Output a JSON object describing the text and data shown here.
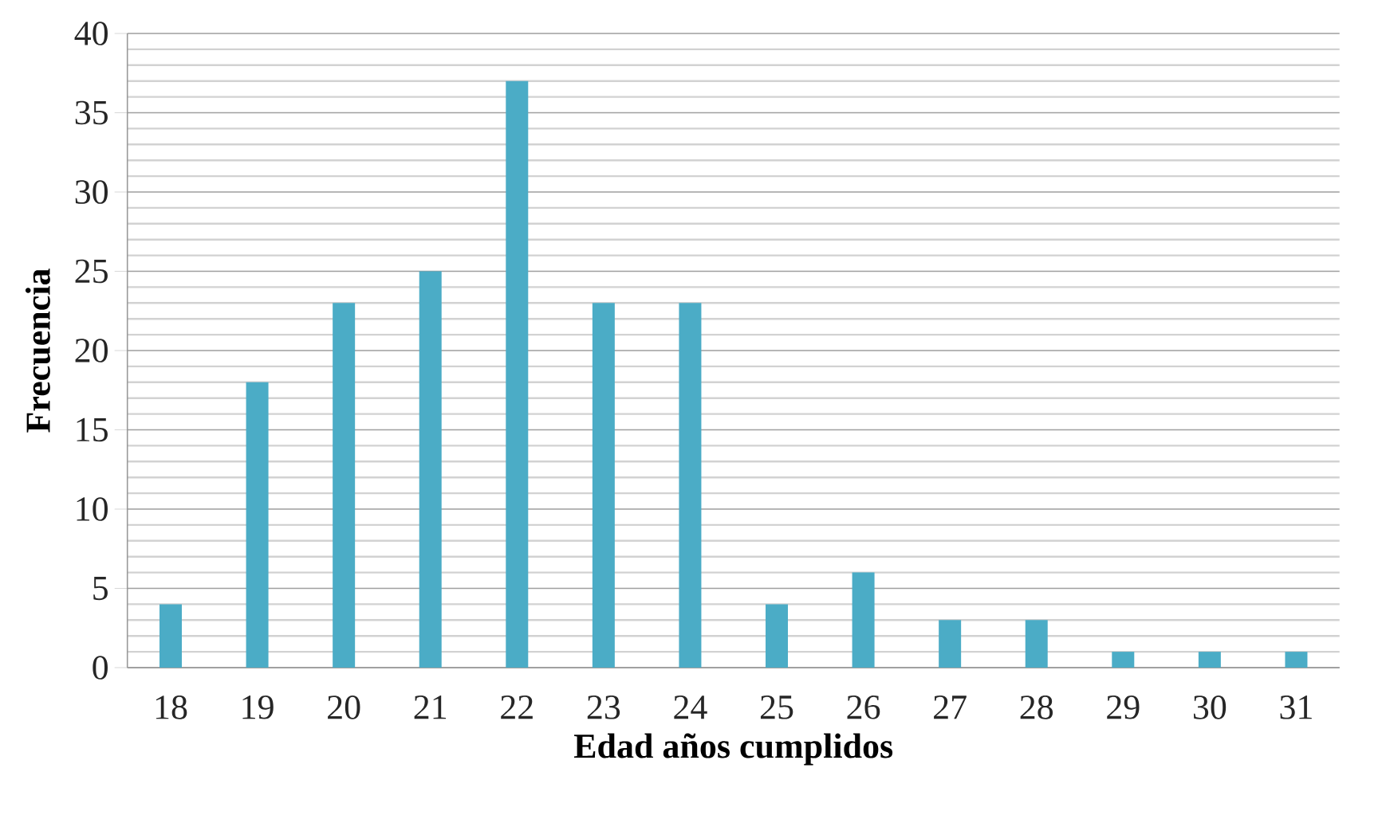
{
  "chart_data": {
    "type": "bar",
    "xlabel": "Edad años cumplidos",
    "ylabel": "Frecuencia",
    "categories": [
      "18",
      "19",
      "20",
      "21",
      "22",
      "23",
      "24",
      "25",
      "26",
      "27",
      "28",
      "29",
      "30",
      "31"
    ],
    "values": [
      4,
      18,
      23,
      25,
      37,
      23,
      23,
      4,
      6,
      3,
      3,
      1,
      1,
      1
    ],
    "color": "#4bacc6",
    "ylim": [
      0,
      40
    ],
    "yticks": [
      0,
      5,
      10,
      15,
      20,
      25,
      30,
      35,
      40
    ],
    "grid": "y"
  }
}
